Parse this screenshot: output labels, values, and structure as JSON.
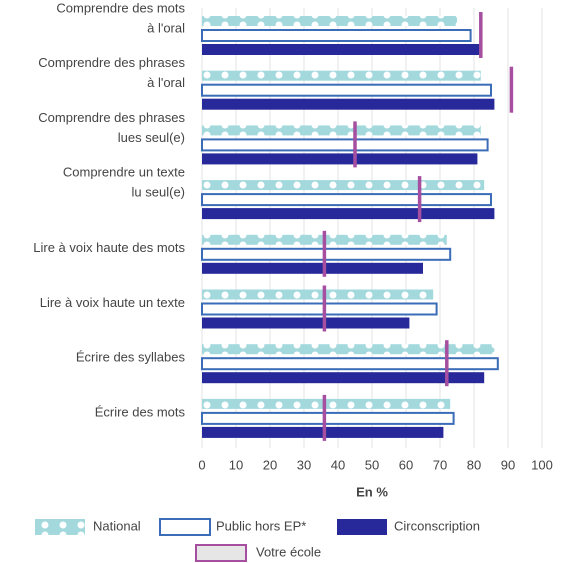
{
  "chart_data": {
    "type": "bar",
    "orientation": "horizontal",
    "categories": [
      [
        "Comprendre des mots",
        "à l'oral"
      ],
      [
        "Comprendre des phrases",
        "à l'oral"
      ],
      [
        "Comprendre des phrases",
        "lues seul(e)"
      ],
      [
        "Comprendre un texte",
        "lu seul(e)"
      ],
      [
        "Lire à voix haute des mots"
      ],
      [
        "Lire à voix haute un texte"
      ],
      [
        "Écrire des syllabes"
      ],
      [
        "Écrire des mots"
      ]
    ],
    "series": [
      {
        "name": "National",
        "color": "#a3d8dd",
        "style": "dots",
        "values": [
          75,
          82,
          82,
          83,
          72,
          68,
          86,
          73
        ]
      },
      {
        "name": "Public hors EP*",
        "color": "#3b6cb7",
        "style": "outline",
        "values": [
          79,
          85,
          84,
          85,
          73,
          69,
          87,
          74
        ]
      },
      {
        "name": "Circonscription",
        "color": "#27289a",
        "style": "solid",
        "values": [
          82,
          86,
          81,
          86,
          65,
          61,
          83,
          71
        ]
      },
      {
        "name": "Votre école",
        "color": "#a64ea0",
        "style": "marker",
        "values": [
          82,
          91,
          45,
          64,
          36,
          36,
          72,
          36
        ]
      }
    ],
    "xlabel": "En %",
    "xlim": [
      0,
      100
    ],
    "xticks": [
      0,
      10,
      20,
      30,
      40,
      50,
      60,
      70,
      80,
      90,
      100
    ],
    "grid": true
  }
}
